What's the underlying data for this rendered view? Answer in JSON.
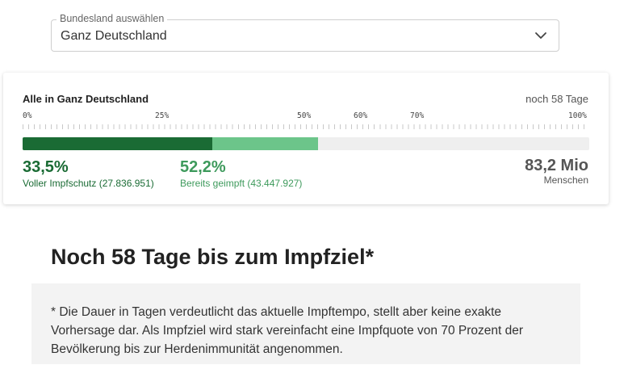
{
  "state_select": {
    "legend": "Bundesland auswählen",
    "value": "Ganz Deutschland",
    "icon": "chevron-down-icon"
  },
  "progress_card": {
    "title": "Alle in Ganz Deutschland",
    "days_left": "noch 58 Tage",
    "ticks": [
      "0%",
      "25%",
      "50%",
      "60%",
      "70%",
      "100%"
    ],
    "full_fraction": 0.335,
    "partial_fraction": 0.522,
    "full_color": "#1a6b34",
    "partial_color": "#6cc58a",
    "full_percent": "33,5%",
    "full_label": "Voller Impfschutz (27.836.951)",
    "partial_percent": "52,2%",
    "partial_label": "Bereits geimpft (43.447.927)",
    "population": "83,2 Mio",
    "population_unit": "Menschen"
  },
  "headline": "Noch 58 Tage bis zum Impfziel*",
  "footnote": "* Die Dauer in Tagen verdeutlicht das aktuelle Impftempo, stellt aber keine exakte Vorhersage dar. Als Impfziel wird stark vereinfacht eine Impfquote von 70 Prozent der Bevölkerung bis zur Herdenimmunität angenommen."
}
